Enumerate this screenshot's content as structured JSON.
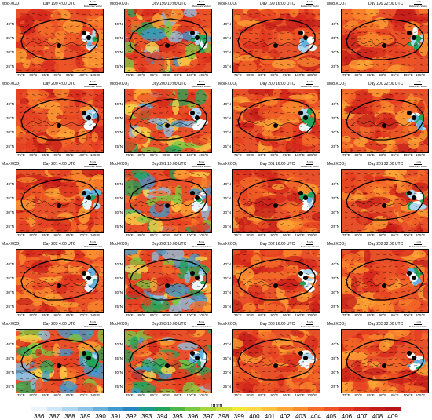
{
  "panels": [
    {
      "title": "Mod-XCO₂",
      "time": "Day 199 4:00 UTC",
      "variant": "red"
    },
    {
      "title": "Mod-XCO₂",
      "time": "Day 199 10:00 UTC",
      "variant": "mixed"
    },
    {
      "title": "Mod-XCO₂",
      "time": "Day 199 16:00 UTC",
      "variant": "red"
    },
    {
      "title": "Mod-XCO₂",
      "time": "Day 199 22:00 UTC",
      "variant": "red"
    },
    {
      "title": "Mod-XCO₂",
      "time": "Day 200 4:00 UTC",
      "variant": "red"
    },
    {
      "title": "Mod-XCO₂",
      "time": "Day 200 10:00 UTC",
      "variant": "mixed"
    },
    {
      "title": "Mod-XCO₂",
      "time": "Day 200 16:00 UTC",
      "variant": "red"
    },
    {
      "title": "Mod-XCO₂",
      "time": "Day 200 22:00 UTC",
      "variant": "red"
    },
    {
      "title": "Mod-XCO₂",
      "time": "Day 201 4:00 UTC",
      "variant": "red"
    },
    {
      "title": "Mod-XCO₂",
      "time": "Day 201 10:00 UTC",
      "variant": "mixed"
    },
    {
      "title": "Mod-XCO₂",
      "time": "Day 201 16:00 UTC",
      "variant": "red"
    },
    {
      "title": "Mod-XCO₂",
      "time": "Day 201 22:00 UTC",
      "variant": "red"
    },
    {
      "title": "Mod-XCO₂",
      "time": "Day 202 4:00 UTC",
      "variant": "red"
    },
    {
      "title": "Mod-XCO₂",
      "time": "Day 202 10:00 UTC",
      "variant": "mixed"
    },
    {
      "title": "Mod-XCO₂",
      "time": "Day 202 16:00 UTC",
      "variant": "red"
    },
    {
      "title": "Mod-XCO₂",
      "time": "Day 202 22:00 UTC",
      "variant": "red"
    },
    {
      "title": "Mod-XCO₂",
      "time": "Day 203 4:00 UTC",
      "variant": "mixed"
    },
    {
      "title": "Mod-XCO₂",
      "time": "Day 203 10:00 UTC",
      "variant": "mixed"
    },
    {
      "title": "Mod-XCO₂",
      "time": "Day 203 16:00 UTC",
      "variant": "red"
    },
    {
      "title": "Mod-XCO₂",
      "time": "Day 203 22:00 UTC",
      "variant": "red"
    }
  ],
  "lat_labels": [
    "40°N",
    "35°N",
    "30°N",
    "25°N"
  ],
  "lon_labels": [
    "75°E",
    "80°E",
    "85°E",
    "90°E",
    "95°E",
    "100°E",
    "105°E"
  ],
  "vector_legend": {
    "speed": "5 m/s",
    "label": "Reference Vector"
  },
  "colorbar": {
    "unit": "ppm",
    "ticks": [
      "386",
      "387",
      "388",
      "389",
      "390",
      "391",
      "392",
      "393",
      "394",
      "395",
      "396",
      "397",
      "398",
      "399",
      "400",
      "401",
      "402",
      "403",
      "404",
      "405",
      "406",
      "407",
      "408",
      "409"
    ],
    "colors": [
      "#eaf4fb",
      "#cfe6f6",
      "#aed6ef",
      "#8cc3e6",
      "#66b0dc",
      "#3e9ad0",
      "#2686c4",
      "#1a9b8c",
      "#22a35a",
      "#4db848",
      "#7ac943",
      "#a6d43a",
      "#cfe03a",
      "#f2e835",
      "#ffd84a",
      "#ffc240",
      "#ffa736",
      "#fb8c2e",
      "#f56e28",
      "#ee5424",
      "#e43c20",
      "#d6281c",
      "#c51d1a",
      "#b81616"
    ]
  }
}
